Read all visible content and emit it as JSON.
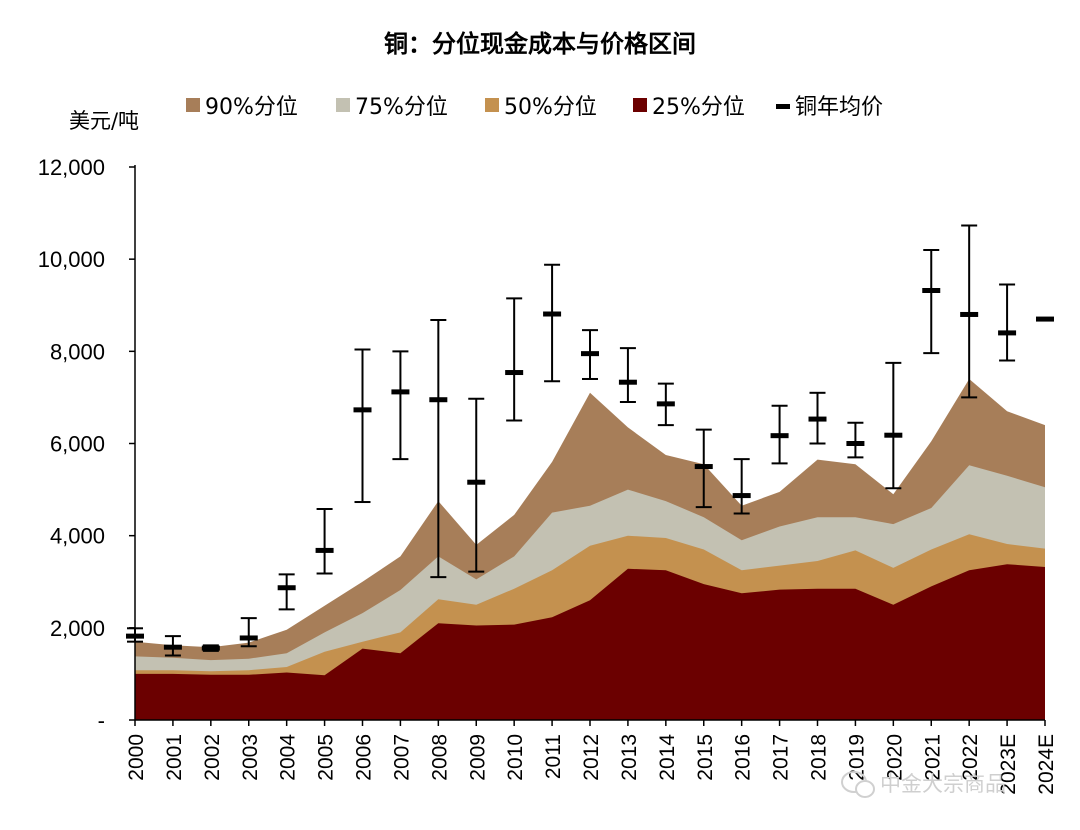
{
  "chart_data": {
    "type": "area",
    "title": "铜：分位现金成本与价格区间",
    "ylabel": "美元/吨",
    "xlabel": "",
    "ylim": [
      0,
      12000
    ],
    "yticks": [
      {
        "value": 0,
        "label": "-"
      },
      {
        "value": 2000,
        "label": "2,000"
      },
      {
        "value": 4000,
        "label": "4,000"
      },
      {
        "value": 6000,
        "label": "6,000"
      },
      {
        "value": 8000,
        "label": "8,000"
      },
      {
        "value": 10000,
        "label": "10,000"
      },
      {
        "value": 12000,
        "label": "12,000"
      }
    ],
    "categories": [
      "2000",
      "2001",
      "2002",
      "2003",
      "2004",
      "2005",
      "2006",
      "2007",
      "2008",
      "2009",
      "2010",
      "2011",
      "2012",
      "2013",
      "2014",
      "2015",
      "2016",
      "2017",
      "2018",
      "2019",
      "2020",
      "2021",
      "2022",
      "2023E",
      "2024E"
    ],
    "series": [
      {
        "name": "25%分位",
        "color": "#6b0000",
        "values": [
          1000,
          1000,
          980,
          980,
          1030,
          970,
          1550,
          1450,
          2100,
          2050,
          2070,
          2230,
          2600,
          3280,
          3250,
          2950,
          2750,
          2830,
          2850,
          2850,
          2500,
          2900,
          3250,
          3380,
          3320
        ]
      },
      {
        "name": "50%分位",
        "color": "#c4914f",
        "values": [
          1080,
          1080,
          1060,
          1080,
          1150,
          1480,
          1700,
          1900,
          2620,
          2500,
          2850,
          3250,
          3780,
          4000,
          3950,
          3700,
          3250,
          3350,
          3450,
          3680,
          3300,
          3700,
          4030,
          3820,
          3720
        ]
      },
      {
        "name": "75%分位",
        "color": "#c3c1b2",
        "values": [
          1380,
          1350,
          1300,
          1330,
          1450,
          1900,
          2320,
          2820,
          3550,
          3050,
          3550,
          4500,
          4650,
          5000,
          4750,
          4400,
          3900,
          4200,
          4400,
          4400,
          4250,
          4600,
          5530,
          5300,
          5050
        ]
      },
      {
        "name": "90%分位",
        "color": "#a77e59",
        "values": [
          1700,
          1620,
          1580,
          1680,
          1960,
          2480,
          3000,
          3550,
          4750,
          3800,
          4450,
          5600,
          7100,
          6350,
          5750,
          5550,
          4650,
          4950,
          5650,
          5550,
          4900,
          6050,
          7400,
          6700,
          6400
        ]
      }
    ],
    "price_series": {
      "name": "铜年均价",
      "average": [
        1820,
        1580,
        1560,
        1780,
        2870,
        3680,
        6730,
        7120,
        6950,
        5160,
        7540,
        8810,
        7950,
        7330,
        6860,
        5500,
        4870,
        6170,
        6530,
        6000,
        6180,
        9320,
        8800,
        8400,
        8700
      ],
      "low": [
        1700,
        1400,
        1500,
        1600,
        2400,
        3180,
        4730,
        5660,
        3100,
        3220,
        6500,
        7350,
        7400,
        6900,
        6400,
        4620,
        4480,
        5570,
        6000,
        5700,
        5030,
        7960,
        7000,
        7800,
        8700
      ],
      "high": [
        1990,
        1820,
        1620,
        2210,
        3160,
        4580,
        8040,
        8000,
        8680,
        6970,
        9150,
        9880,
        8460,
        8070,
        7300,
        6300,
        5660,
        6820,
        7100,
        6450,
        7750,
        10200,
        10730,
        9450,
        8700
      ]
    },
    "legend": [
      "90%分位",
      "75%分位",
      "50%分位",
      "25%分位",
      "铜年均价"
    ],
    "legend_position": "top"
  },
  "watermark": "中金大宗商品"
}
